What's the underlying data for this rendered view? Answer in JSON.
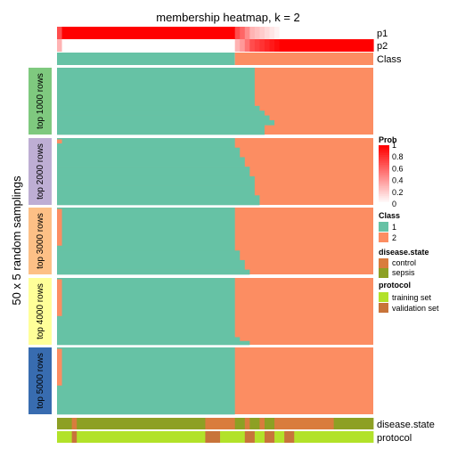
{
  "chart_data": {
    "type": "heatmap",
    "title": "membership heatmap, k = 2",
    "ylabel": "50 x 5 random samplings",
    "n_samples": 64,
    "class_split": 36,
    "top_annotations": [
      {
        "name": "p1"
      },
      {
        "name": "p2"
      },
      {
        "name": "Class"
      }
    ],
    "p2_values": [
      0.3,
      0,
      0,
      0,
      0,
      0,
      0,
      0,
      0,
      0,
      0,
      0,
      0,
      0,
      0,
      0,
      0,
      0,
      0,
      0,
      0,
      0,
      0,
      0,
      0,
      0,
      0,
      0,
      0,
      0,
      0,
      0,
      0,
      0,
      0,
      0,
      0.3,
      0.4,
      0.55,
      0.7,
      0.75,
      0.8,
      0.85,
      0.9,
      0.95,
      1,
      1,
      1,
      1,
      1,
      1,
      1,
      1,
      1,
      1,
      1,
      1,
      1,
      1,
      1,
      1,
      1,
      1,
      1
    ],
    "panels": [
      {
        "label": "top 1000 rows",
        "color": "#7fc97f",
        "stair": [
          0,
          0,
          0,
          0,
          0,
          0,
          0,
          0,
          0,
          0,
          0,
          0,
          0,
          0,
          0,
          0,
          0,
          0,
          0,
          0,
          0,
          0,
          0,
          0,
          0,
          0,
          0,
          0,
          0,
          0,
          0,
          0,
          0,
          0,
          0,
          0,
          0,
          0,
          0,
          0,
          0,
          0,
          0,
          0,
          0,
          0,
          0,
          0,
          0,
          0,
          0,
          0,
          0,
          0,
          0,
          0,
          0,
          0,
          0,
          0,
          0,
          0,
          0,
          0,
          0,
          0,
          0,
          0,
          0,
          0,
          0,
          0,
          0,
          0,
          0,
          0,
          0,
          0,
          0,
          0,
          0,
          0,
          0,
          0,
          0,
          0,
          0,
          0,
          0,
          0,
          0,
          0,
          0,
          0,
          0,
          0,
          0,
          0,
          0,
          0
        ],
        "limits": [
          [
            0,
            40,
            40
          ],
          [
            40,
            45,
            41
          ],
          [
            45,
            50,
            42
          ],
          [
            50,
            55,
            43
          ],
          [
            55,
            60,
            44
          ],
          [
            60,
            70,
            42
          ]
        ]
      },
      {
        "label": "top 2000 rows",
        "color": "#beaed4",
        "limits": [
          [
            0,
            10,
            36
          ],
          [
            10,
            20,
            37
          ],
          [
            20,
            30,
            38
          ],
          [
            30,
            40,
            39
          ],
          [
            40,
            50,
            40
          ],
          [
            50,
            60,
            40
          ],
          [
            60,
            70,
            41
          ]
        ]
      },
      {
        "label": "top 3000 rows",
        "color": "#fdc086",
        "limits": [
          [
            0,
            45,
            36
          ],
          [
            45,
            55,
            37
          ],
          [
            55,
            65,
            38
          ],
          [
            65,
            70,
            39
          ]
        ]
      },
      {
        "label": "top 4000 rows",
        "color": "#ffff99",
        "limits": [
          [
            0,
            62,
            36
          ],
          [
            62,
            66,
            37
          ],
          [
            66,
            70,
            39
          ]
        ]
      },
      {
        "label": "top 5000 rows",
        "color": "#386cb0",
        "limits": [
          [
            0,
            70,
            36
          ]
        ]
      }
    ],
    "bottom_annotations": [
      {
        "name": "disease.state",
        "segments": [
          [
            "sepsis",
            0,
            3
          ],
          [
            "control",
            3,
            4
          ],
          [
            "sepsis",
            4,
            30
          ],
          [
            "control",
            30,
            36
          ],
          [
            "sepsis",
            36,
            38
          ],
          [
            "control",
            38,
            39
          ],
          [
            "sepsis",
            39,
            41
          ],
          [
            "control",
            41,
            42
          ],
          [
            "sepsis",
            42,
            44
          ],
          [
            "control",
            44,
            56
          ],
          [
            "sepsis",
            56,
            64
          ]
        ]
      },
      {
        "name": "protocol",
        "segments": [
          [
            "training set",
            0,
            3
          ],
          [
            "validation set",
            3,
            4
          ],
          [
            "training set",
            4,
            30
          ],
          [
            "validation set",
            30,
            33
          ],
          [
            "training set",
            33,
            38
          ],
          [
            "validation set",
            38,
            40
          ],
          [
            "training set",
            40,
            42
          ],
          [
            "validation set",
            42,
            44
          ],
          [
            "training set",
            44,
            46
          ],
          [
            "validation set",
            46,
            48
          ],
          [
            "training set",
            48,
            64
          ]
        ]
      }
    ],
    "legend": {
      "prob": {
        "title": "Prob",
        "ticks": [
          "1",
          "0.8",
          "0.6",
          "0.4",
          "0.2",
          "0"
        ]
      },
      "class": {
        "title": "Class",
        "items": [
          {
            "label": "1",
            "color": "#66c2a5"
          },
          {
            "label": "2",
            "color": "#fc8d62"
          }
        ]
      },
      "disease_state": {
        "title": "disease.state",
        "items": [
          {
            "label": "control",
            "color": "#d97c3d"
          },
          {
            "label": "sepsis",
            "color": "#8da024"
          }
        ]
      },
      "protocol": {
        "title": "protocol",
        "items": [
          {
            "label": "training set",
            "color": "#b2e22a"
          },
          {
            "label": "validation set",
            "color": "#c8743a"
          }
        ]
      }
    },
    "colors": {
      "class1": "#66c2a5",
      "class2": "#fc8d62",
      "p_high": "#ff0000",
      "p_low": "#ffffff"
    }
  }
}
